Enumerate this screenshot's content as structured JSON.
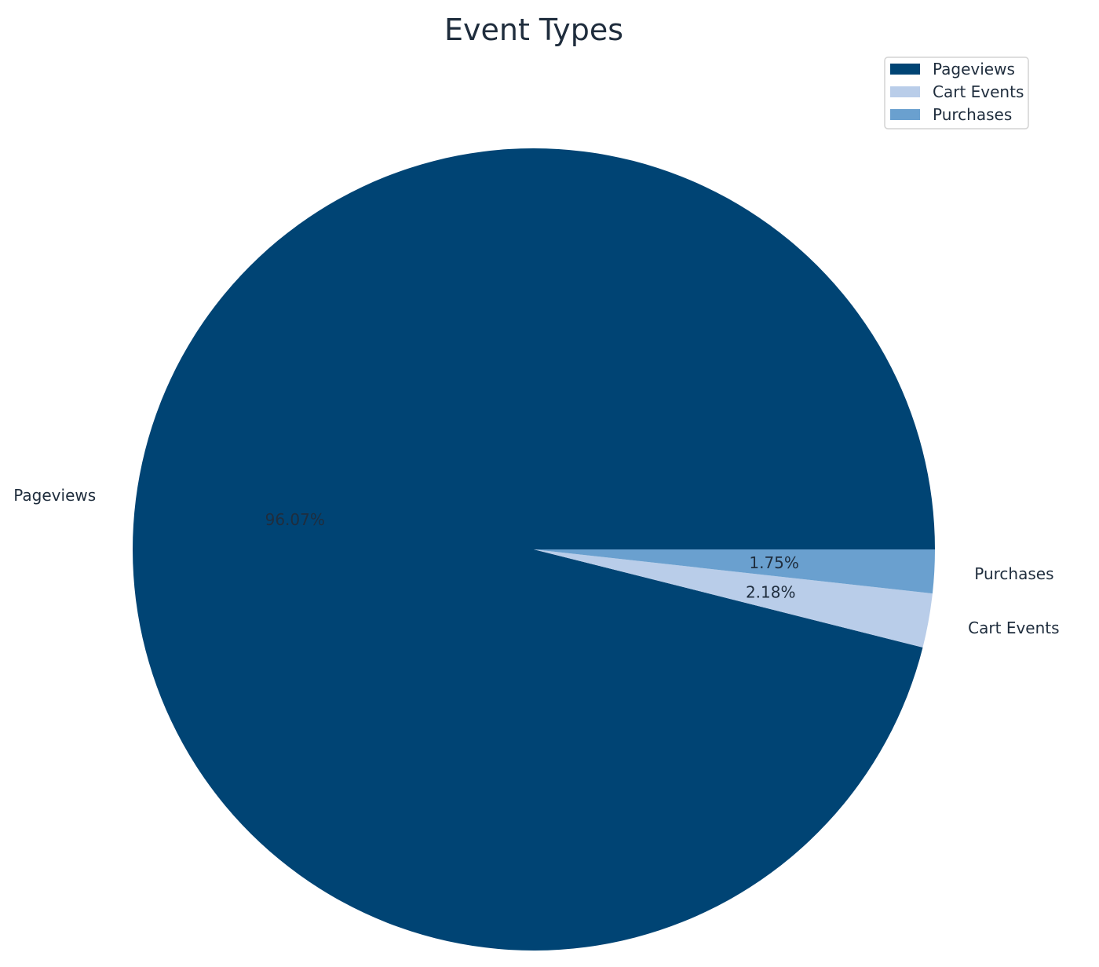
{
  "chart_data": {
    "type": "pie",
    "title": "Event Types",
    "categories": [
      "Pageviews",
      "Cart Events",
      "Purchases"
    ],
    "values": [
      96.07,
      2.18,
      1.75
    ],
    "value_labels": [
      "96.07%",
      "2.18%",
      "1.75%"
    ],
    "colors": [
      "#004474",
      "#b9cde9",
      "#6aa0cf"
    ],
    "start_angle_deg": 0,
    "direction": "clockwise-on-screen",
    "legend": {
      "position": "top-right",
      "entries": [
        "Pageviews",
        "Cart Events",
        "Purchases"
      ]
    }
  }
}
